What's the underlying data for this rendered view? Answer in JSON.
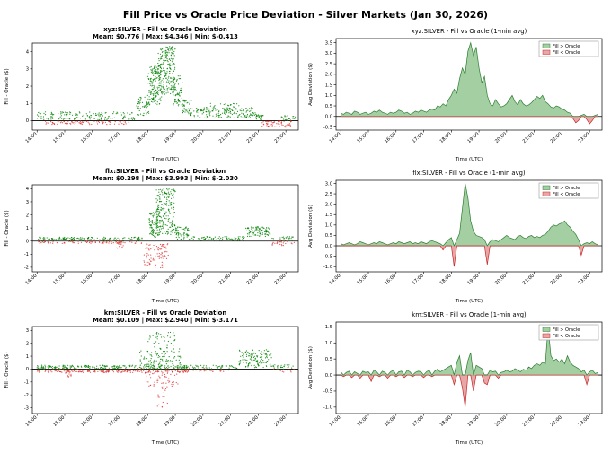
{
  "page_title": "Fill Price vs Oracle Price Deviation - Silver Markets (Jan 30, 2026)",
  "legend": {
    "pos": "Fill > Oracle",
    "neg": "Fill < Oracle"
  },
  "colors": {
    "scatter_pos": "#008000",
    "scatter_neg": "#e03030",
    "area_pos_fill": "#a3cfa3",
    "area_pos_edge": "#2e7d32",
    "area_neg_fill": "#e9a6a6",
    "area_neg_edge": "#c62828",
    "zero_line": "#000000",
    "axis": "#000000",
    "legend_border": "#999999"
  },
  "axes": {
    "xlabel": "Time (UTC)",
    "xticks": [
      14,
      15,
      16,
      17,
      18,
      19,
      20,
      21,
      22,
      23
    ],
    "xtick_suffix": ":00",
    "xlim": [
      13.83,
      23.45
    ]
  },
  "chart_data": [
    {
      "id": "xyz-scatter",
      "type": "scatter",
      "title": "xyz:SILVER - Fill vs Oracle Deviation",
      "subtitle": "Mean: $0.776 | Max: $4.346 | Min: $-0.413",
      "ylabel": "Fill - Oracle ($)",
      "ylim": [
        -0.55,
        4.5
      ],
      "yticks": [
        0,
        1,
        2,
        3,
        4
      ],
      "ydec": 0,
      "stats": {
        "mean": 0.776,
        "max": 4.346,
        "min": -0.413
      },
      "bands": [
        [
          14.0,
          17.6,
          0.05,
          0.5,
          150
        ],
        [
          14.3,
          17.5,
          -0.22,
          -0.02,
          90
        ],
        [
          17.6,
          18.05,
          0.3,
          1.4,
          50
        ],
        [
          18.0,
          18.5,
          0.9,
          3.2,
          160
        ],
        [
          18.35,
          19.0,
          1.5,
          4.3,
          220
        ],
        [
          18.9,
          19.25,
          0.8,
          2.6,
          70
        ],
        [
          19.25,
          19.6,
          0.4,
          1.2,
          40
        ],
        [
          19.5,
          21.9,
          0.15,
          0.75,
          160
        ],
        [
          20.1,
          21.4,
          0.5,
          1.0,
          40
        ],
        [
          21.9,
          22.2,
          0.05,
          0.4,
          25
        ],
        [
          22.1,
          23.2,
          -0.38,
          -0.02,
          70
        ],
        [
          22.8,
          23.35,
          0.02,
          0.3,
          20
        ]
      ]
    },
    {
      "id": "xyz-area",
      "type": "area",
      "title": "xyz:SILVER - Fill vs Oracle (1-min avg)",
      "ylabel": "Avg Deviation ($)",
      "ylim": [
        -0.65,
        3.7
      ],
      "yticks": [
        -0.5,
        0.0,
        0.5,
        1.0,
        1.5,
        2.0,
        2.5,
        3.0,
        3.5
      ],
      "ydec": 1,
      "legend": true,
      "series": {
        "t0": 14.0,
        "dt": 0.1,
        "v": [
          0.15,
          0.1,
          0.2,
          0.15,
          0.1,
          0.25,
          0.2,
          0.1,
          0.15,
          0.2,
          0.1,
          0.15,
          0.25,
          0.2,
          0.3,
          0.2,
          0.15,
          0.1,
          0.2,
          0.15,
          0.2,
          0.3,
          0.25,
          0.15,
          0.2,
          0.1,
          0.15,
          0.25,
          0.2,
          0.3,
          0.25,
          0.2,
          0.3,
          0.35,
          0.3,
          0.5,
          0.45,
          0.6,
          0.5,
          0.8,
          1.0,
          1.3,
          1.1,
          1.8,
          2.3,
          2.0,
          3.1,
          3.5,
          2.9,
          3.3,
          2.3,
          1.6,
          1.9,
          1.0,
          0.6,
          0.5,
          0.8,
          0.6,
          0.45,
          0.5,
          0.6,
          0.8,
          1.0,
          0.7,
          0.55,
          0.8,
          0.6,
          0.5,
          0.55,
          0.65,
          0.8,
          0.95,
          0.85,
          1.0,
          0.7,
          0.6,
          0.45,
          0.4,
          0.5,
          0.45,
          0.35,
          0.3,
          0.2,
          0.15,
          -0.1,
          -0.3,
          -0.2,
          0.05,
          0.1,
          -0.15,
          -0.35,
          -0.2,
          0.05,
          0.1
        ]
      }
    },
    {
      "id": "flx-scatter",
      "type": "scatter",
      "title": "flx:SILVER - Fill vs Oracle Deviation",
      "subtitle": "Mean: $0.298 | Max: $3.993 | Min: $-2.030",
      "ylabel": "Fill - Oracle ($)",
      "ylim": [
        -2.35,
        4.3
      ],
      "yticks": [
        -2,
        -1,
        0,
        1,
        2,
        3,
        4
      ],
      "ydec": 0,
      "stats": {
        "mean": 0.298,
        "max": 3.993,
        "min": -2.03
      },
      "bands": [
        [
          14.0,
          17.8,
          0.02,
          0.3,
          170
        ],
        [
          14.0,
          17.8,
          -0.18,
          -0.02,
          90
        ],
        [
          16.85,
          17.15,
          -0.55,
          -0.1,
          12
        ],
        [
          17.8,
          18.6,
          -2.05,
          -0.2,
          55
        ],
        [
          18.05,
          18.45,
          0.3,
          2.2,
          90
        ],
        [
          18.3,
          19.0,
          0.5,
          4.0,
          200
        ],
        [
          18.35,
          18.75,
          -1.4,
          -0.2,
          35
        ],
        [
          19.0,
          19.5,
          0.1,
          1.1,
          60
        ],
        [
          19.5,
          21.5,
          0.04,
          0.35,
          80
        ],
        [
          21.55,
          22.45,
          0.35,
          1.1,
          100
        ],
        [
          22.45,
          23.3,
          -0.35,
          -0.02,
          25
        ],
        [
          22.5,
          23.3,
          0.02,
          0.35,
          25
        ]
      ]
    },
    {
      "id": "flx-area",
      "type": "area",
      "title": "flx:SILVER - Fill vs Oracle (1-min avg)",
      "ylabel": "Avg Deviation ($)",
      "ylim": [
        -1.25,
        3.15
      ],
      "yticks": [
        -1.0,
        -0.5,
        0.0,
        0.5,
        1.0,
        1.5,
        2.0,
        2.5,
        3.0
      ],
      "ydec": 1,
      "legend": true,
      "series": {
        "t0": 14.0,
        "dt": 0.1,
        "v": [
          0.1,
          0.05,
          0.1,
          0.15,
          0.1,
          0.05,
          0.1,
          0.2,
          0.15,
          0.1,
          0.05,
          0.1,
          0.15,
          0.1,
          0.2,
          0.15,
          0.1,
          0.05,
          0.1,
          0.15,
          0.1,
          0.2,
          0.15,
          0.1,
          0.15,
          0.2,
          0.1,
          0.15,
          0.1,
          0.2,
          0.15,
          0.1,
          0.2,
          0.25,
          0.2,
          0.15,
          0.1,
          -0.2,
          0.15,
          0.3,
          0.4,
          -1.0,
          0.3,
          0.6,
          1.8,
          3.0,
          2.3,
          1.2,
          0.7,
          0.5,
          0.45,
          0.4,
          0.3,
          -0.9,
          0.2,
          0.3,
          0.25,
          0.2,
          0.3,
          0.4,
          0.5,
          0.4,
          0.35,
          0.3,
          0.45,
          0.5,
          0.4,
          0.35,
          0.45,
          0.5,
          0.4,
          0.45,
          0.4,
          0.5,
          0.55,
          0.7,
          0.9,
          1.0,
          0.95,
          1.05,
          1.1,
          1.2,
          1.0,
          0.9,
          0.7,
          0.55,
          0.3,
          -0.45,
          0.1,
          0.15,
          0.1,
          0.2,
          0.1,
          0.05
        ]
      }
    },
    {
      "id": "km-scatter",
      "type": "scatter",
      "title": "km:SILVER - Fill vs Oracle Deviation",
      "subtitle": "Mean: $0.109 | Max: $2.940 | Min: $-3.171",
      "ylabel": "Fill - Oracle ($)",
      "ylim": [
        -3.45,
        3.3
      ],
      "yticks": [
        -3,
        -2,
        -1,
        0,
        1,
        2,
        3
      ],
      "ydec": 0,
      "stats": {
        "mean": 0.109,
        "max": 2.94,
        "min": -3.171
      },
      "bands": [
        [
          14.0,
          19.5,
          0.02,
          0.3,
          260
        ],
        [
          14.0,
          19.5,
          -0.28,
          -0.02,
          240
        ],
        [
          15.0,
          15.25,
          -0.65,
          -0.2,
          10
        ],
        [
          17.7,
          19.2,
          0.3,
          1.6,
          90
        ],
        [
          18.0,
          19.0,
          1.2,
          2.9,
          45
        ],
        [
          17.9,
          19.1,
          -1.4,
          -0.3,
          55
        ],
        [
          18.35,
          18.75,
          -3.2,
          -1.4,
          18
        ],
        [
          19.5,
          21.3,
          0.02,
          0.3,
          50
        ],
        [
          19.5,
          21.0,
          -0.2,
          -0.02,
          25
        ],
        [
          21.3,
          22.5,
          0.1,
          1.5,
          130
        ],
        [
          22.5,
          23.3,
          -0.25,
          0.35,
          35
        ]
      ]
    },
    {
      "id": "km-area",
      "type": "area",
      "title": "km:SILVER - Fill vs Oracle (1-min avg)",
      "ylabel": "Avg Deviation ($)",
      "ylim": [
        -1.2,
        1.65
      ],
      "yticks": [
        -1.0,
        -0.5,
        0.0,
        0.5,
        1.0,
        1.5
      ],
      "ydec": 1,
      "legend": true,
      "series": {
        "t0": 14.0,
        "dt": 0.1,
        "v": [
          0.1,
          -0.05,
          0.08,
          0.12,
          -0.08,
          0.1,
          0.05,
          -0.1,
          0.12,
          0.08,
          0.1,
          -0.2,
          0.15,
          0.1,
          -0.05,
          0.12,
          0.08,
          -0.1,
          0.1,
          0.15,
          -0.05,
          0.1,
          0.12,
          -0.08,
          0.15,
          0.1,
          -0.05,
          0.08,
          0.12,
          0.1,
          -0.08,
          0.1,
          0.15,
          -0.05,
          0.12,
          0.18,
          0.1,
          0.15,
          0.2,
          0.25,
          0.3,
          -0.3,
          0.4,
          0.6,
          -0.4,
          -1.0,
          0.45,
          0.7,
          -0.5,
          0.3,
          0.25,
          0.2,
          -0.25,
          -0.3,
          0.15,
          0.1,
          0.12,
          -0.1,
          0.08,
          0.1,
          0.15,
          0.1,
          0.12,
          0.2,
          0.15,
          0.1,
          0.18,
          0.15,
          0.25,
          0.2,
          0.3,
          0.35,
          0.3,
          0.4,
          0.35,
          1.5,
          0.6,
          0.45,
          0.5,
          0.4,
          0.5,
          0.35,
          0.6,
          0.4,
          0.3,
          0.25,
          0.2,
          0.1,
          0.15,
          -0.3,
          0.1,
          0.15,
          0.05,
          0.08
        ]
      }
    }
  ]
}
